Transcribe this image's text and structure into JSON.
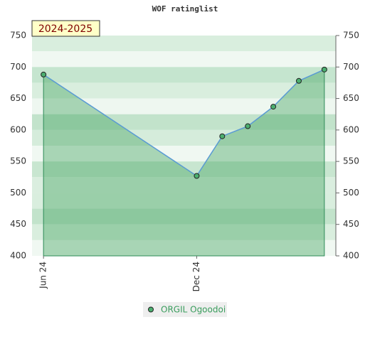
{
  "chart_data": {
    "type": "line",
    "title": "WOF ratinglist",
    "annotation": "2024-2025",
    "x": [
      0,
      6,
      7,
      8,
      9,
      10,
      11
    ],
    "xlim": [
      -0.45,
      11.45
    ],
    "xticks": [
      {
        "value": 0,
        "label": "Jun 24"
      },
      {
        "value": 6,
        "label": "Dec 24"
      }
    ],
    "series": [
      {
        "name": "ORGIL Ogoodoi",
        "color": "#5b9bd5",
        "values": [
          688,
          527,
          590,
          606,
          637,
          678,
          696
        ]
      }
    ],
    "ylim": [
      400,
      750
    ],
    "yticks": [
      400,
      450,
      500,
      550,
      600,
      650,
      700,
      750
    ]
  }
}
